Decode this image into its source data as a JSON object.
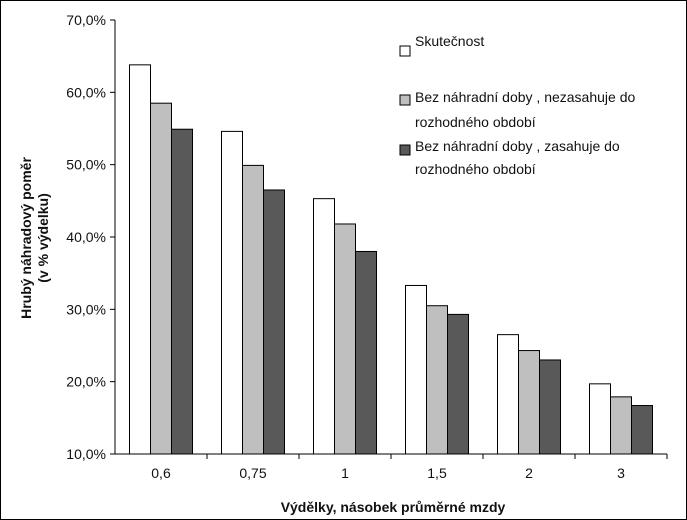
{
  "chart_data": {
    "type": "bar",
    "categories": [
      "0,6",
      "0,75",
      "1",
      "1,5",
      "2",
      "3"
    ],
    "series": [
      {
        "name": "Skutečnost",
        "values": [
          63.8,
          54.6,
          45.3,
          33.3,
          26.5,
          19.7
        ],
        "color": "#ffffff"
      },
      {
        "name": "Bez náhradní doby , nezasahuje do rozhodného období",
        "values": [
          58.5,
          49.9,
          41.8,
          30.5,
          24.3,
          17.9
        ],
        "color": "#bfbfbf"
      },
      {
        "name": "Bez náhradní doby , zasahuje do rozhodného období",
        "values": [
          54.9,
          46.5,
          38.0,
          29.3,
          23.0,
          16.7
        ],
        "color": "#595959"
      }
    ],
    "legend_lines": [
      [
        "Skutečnost"
      ],
      [
        "Bez náhradní doby , nezasahuje do",
        "rozhodného období"
      ],
      [
        "Bez náhradní doby , zasahuje do",
        "rozhodného období"
      ]
    ],
    "ylim": [
      10,
      70
    ],
    "yticks": [
      "10,0%",
      "20,0%",
      "30,0%",
      "40,0%",
      "50,0%",
      "60,0%",
      "70,0%"
    ],
    "xlabel": "Výdělky, násobek průměrné mzdy",
    "ylabel_lines": [
      "Hrubý náhradový poměr",
      "(v % výdelku)"
    ],
    "legend_position": "top-right",
    "grid": false
  }
}
